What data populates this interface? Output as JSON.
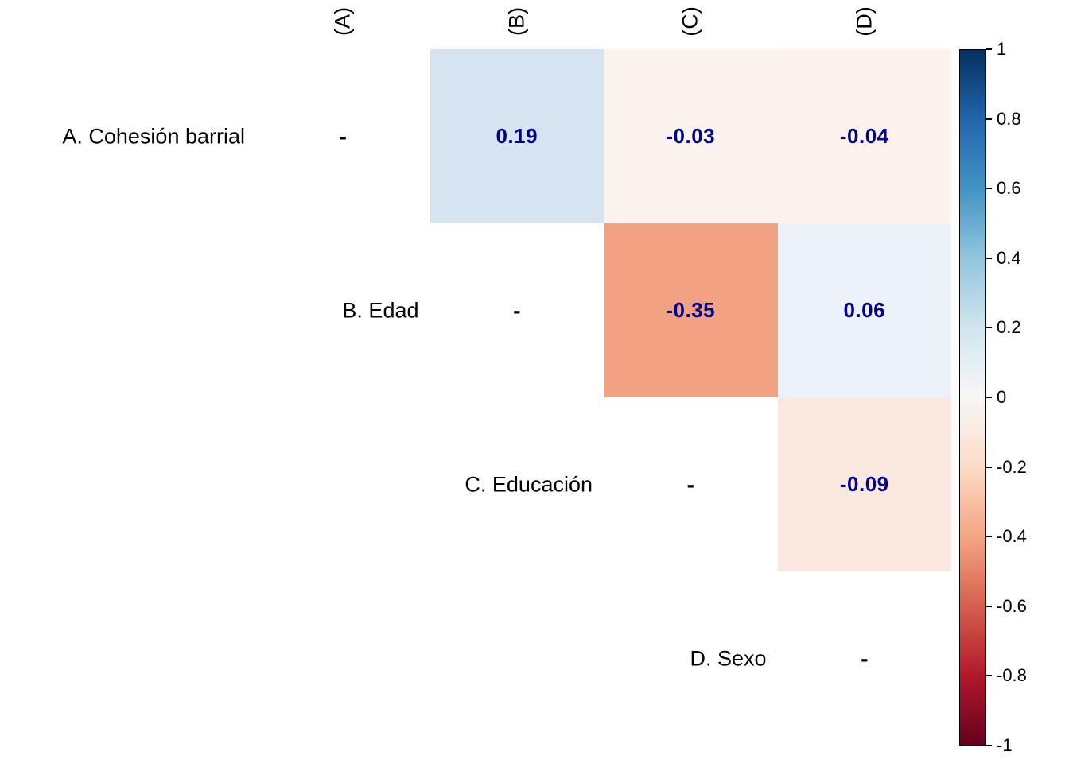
{
  "chart_data": {
    "type": "heatmap",
    "subtype": "correlation-matrix-upper-triangle",
    "title": "",
    "variables": [
      {
        "id": "A",
        "label": "A. Cohesión barrial",
        "col_header": "(A)"
      },
      {
        "id": "B",
        "label": "B. Edad",
        "col_header": "(B)"
      },
      {
        "id": "C",
        "label": "C. Educación",
        "col_header": "(C)"
      },
      {
        "id": "D",
        "label": "D. Sexo",
        "col_header": "(D)"
      }
    ],
    "cells": [
      {
        "row": "A",
        "col": "A",
        "text": "-",
        "value": null,
        "fill": "#ffffff"
      },
      {
        "row": "A",
        "col": "B",
        "text": "0.19",
        "value": 0.19,
        "fill": "#d5e4f0"
      },
      {
        "row": "A",
        "col": "C",
        "text": "-0.03",
        "value": -0.03,
        "fill": "#fdf3ed"
      },
      {
        "row": "A",
        "col": "D",
        "text": "-0.04",
        "value": -0.04,
        "fill": "#fdf2ec"
      },
      {
        "row": "B",
        "col": "B",
        "text": "-",
        "value": null,
        "fill": "#ffffff"
      },
      {
        "row": "B",
        "col": "C",
        "text": "-0.35",
        "value": -0.35,
        "fill": "#f2a283"
      },
      {
        "row": "B",
        "col": "D",
        "text": "0.06",
        "value": 0.06,
        "fill": "#ecf2f7"
      },
      {
        "row": "C",
        "col": "C",
        "text": "-",
        "value": null,
        "fill": "#ffffff"
      },
      {
        "row": "C",
        "col": "D",
        "text": "-0.09",
        "value": -0.09,
        "fill": "#fbe8de"
      },
      {
        "row": "D",
        "col": "D",
        "text": "-",
        "value": null,
        "fill": "#ffffff"
      }
    ],
    "value_text_color": "#00008b",
    "colorbar": {
      "range": [
        -1,
        1
      ],
      "ticks": [
        "1",
        "0.8",
        "0.6",
        "0.4",
        "0.2",
        "0",
        "-0.2",
        "-0.4",
        "-0.6",
        "-0.8",
        "-1"
      ],
      "stops": [
        {
          "pos": 0,
          "color": "#053061"
        },
        {
          "pos": 10,
          "color": "#2166ac"
        },
        {
          "pos": 20,
          "color": "#4393c3"
        },
        {
          "pos": 30,
          "color": "#92c5de"
        },
        {
          "pos": 40,
          "color": "#d1e5f0"
        },
        {
          "pos": 50,
          "color": "#f7f7f7"
        },
        {
          "pos": 60,
          "color": "#fddbc7"
        },
        {
          "pos": 70,
          "color": "#f4a582"
        },
        {
          "pos": 80,
          "color": "#d6604d"
        },
        {
          "pos": 90,
          "color": "#b2182b"
        },
        {
          "pos": 100,
          "color": "#67001f"
        }
      ]
    },
    "legend_position": "right-colorbar",
    "grid": false
  }
}
